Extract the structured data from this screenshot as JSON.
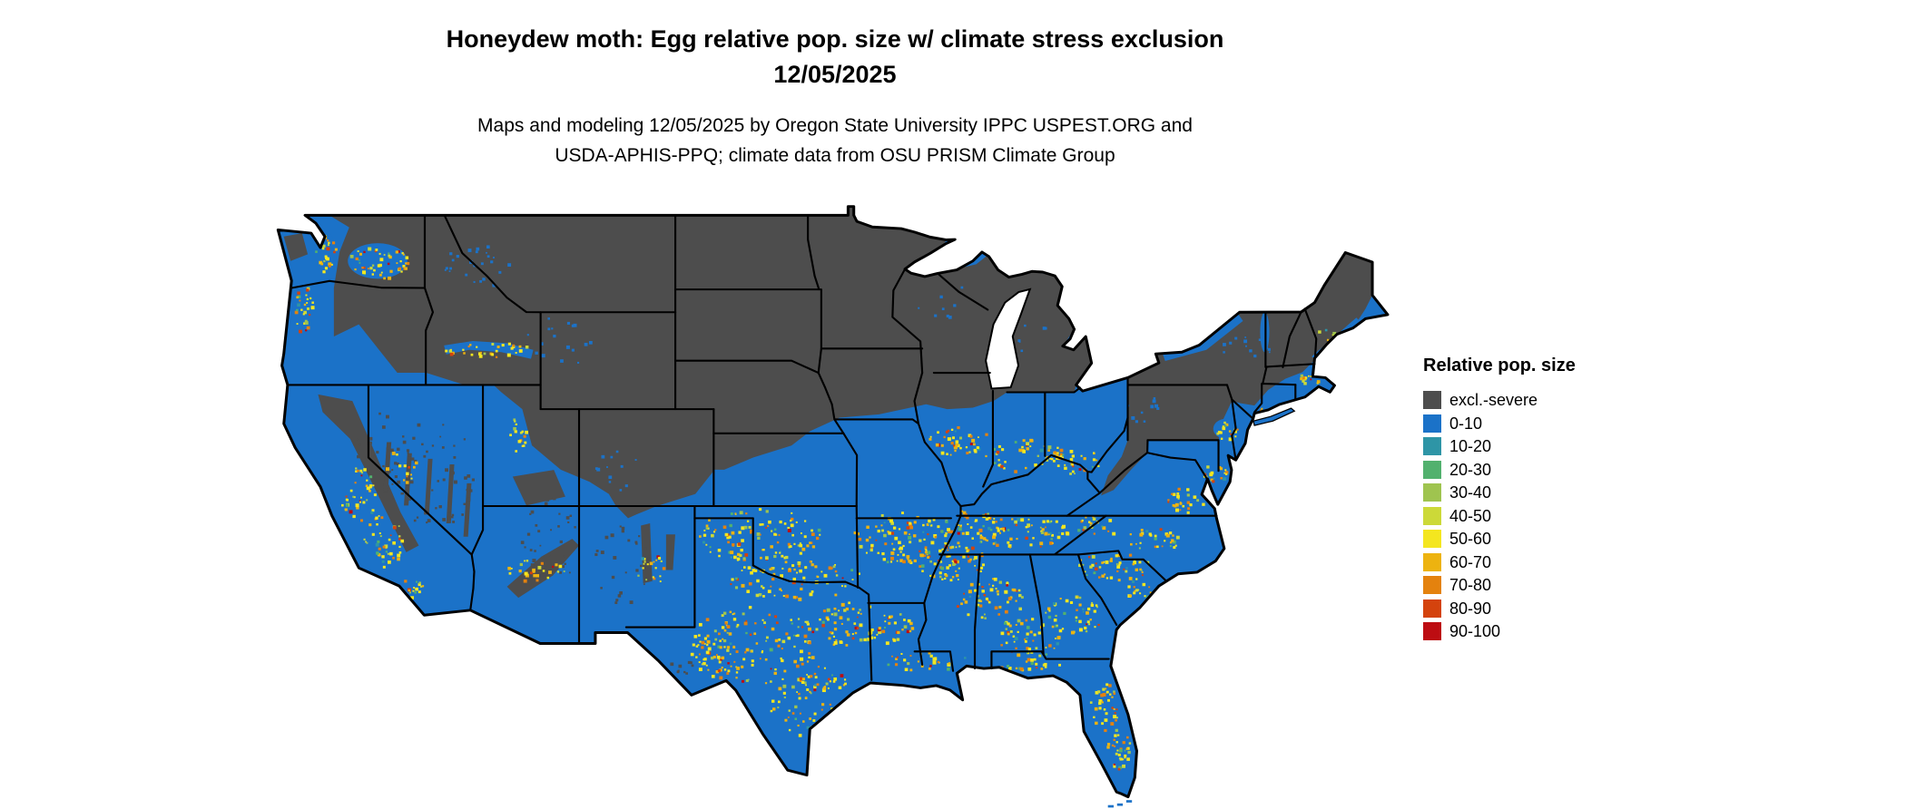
{
  "header": {
    "title_line1": "Honeydew moth: Egg relative pop. size w/ climate stress exclusion",
    "title_line2": "12/05/2025",
    "subtitle_line1": "Maps and modeling 12/05/2025 by Oregon State University IPPC USPEST.ORG and",
    "subtitle_line2": "USDA-APHIS-PPQ; climate data from OSU PRISM Climate Group"
  },
  "legend": {
    "title": "Relative pop. size",
    "items": [
      {
        "label": "excl.-severe",
        "color": "#4d4d4d"
      },
      {
        "label": "0-10",
        "color": "#1b72c8"
      },
      {
        "label": "10-20",
        "color": "#2e95a6"
      },
      {
        "label": "20-30",
        "color": "#52b16e"
      },
      {
        "label": "30-40",
        "color": "#9fc44f"
      },
      {
        "label": "40-50",
        "color": "#ccd938"
      },
      {
        "label": "50-60",
        "color": "#f4e61f"
      },
      {
        "label": "60-70",
        "color": "#edb310"
      },
      {
        "label": "70-80",
        "color": "#e4820e"
      },
      {
        "label": "80-90",
        "color": "#d4430d"
      },
      {
        "label": "90-100",
        "color": "#bd0d12"
      }
    ]
  },
  "map": {
    "background_color": "#ffffff",
    "border_color": "#000000"
  }
}
